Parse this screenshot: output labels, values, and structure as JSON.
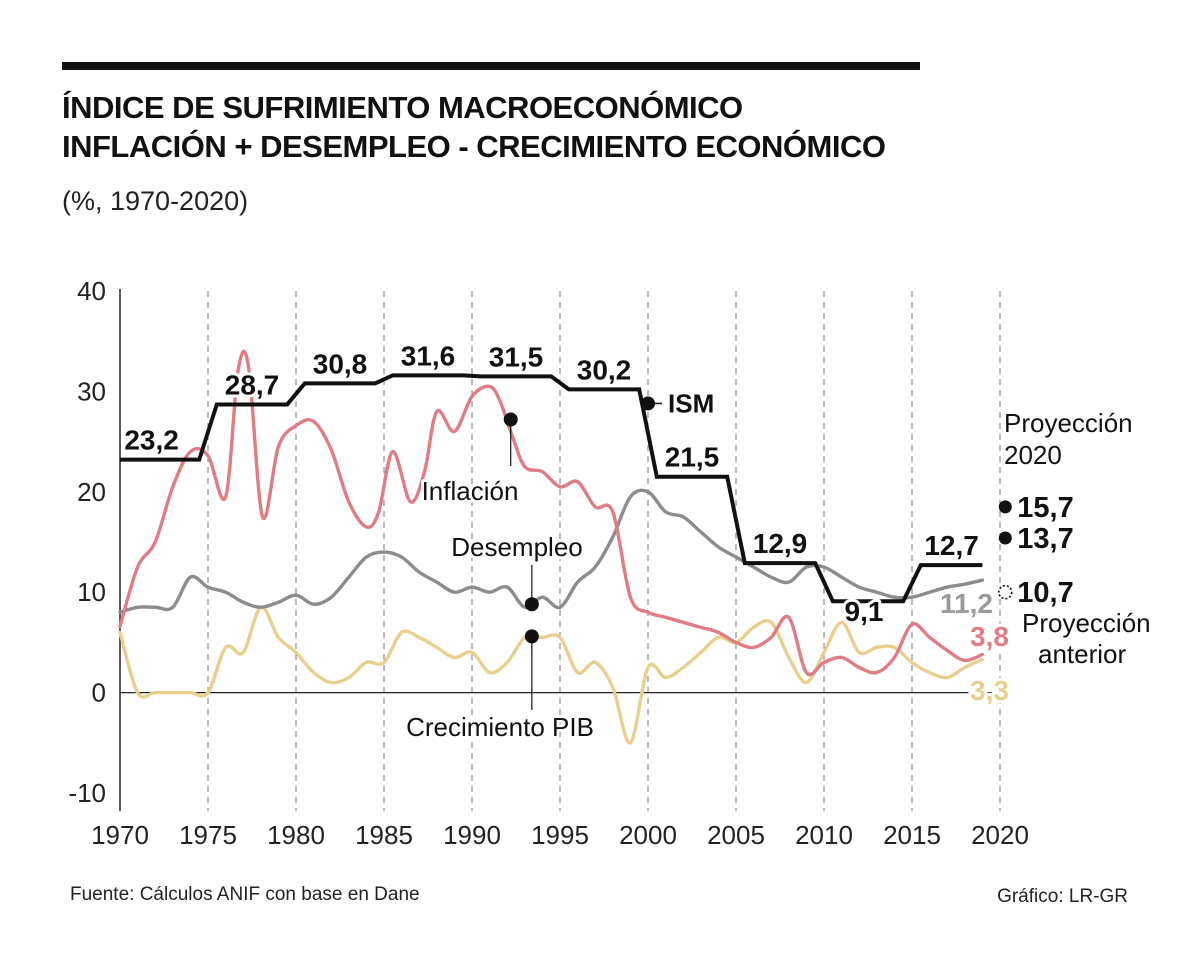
{
  "header": {
    "title_line1": "ÍNDICE DE SUFRIMIENTO MACROECONÓMICO",
    "title_line2": "INFLACIÓN + DESEMPLEO - CRECIMIENTO ECONÓMICO",
    "subtitle": "(%, 1970-2020)"
  },
  "footer": {
    "source": "Fuente: Cálculos ANIF con base en Dane",
    "credit": "Gráfico: LR-GR"
  },
  "colors": {
    "ism": "#111111",
    "inflacion": "#E07C84",
    "desempleo": "#8C8C8C",
    "crecimiento": "#E8CF8E",
    "label_ism_last": "#111111",
    "label_desempleo": "#9A9A9A",
    "label_inflacion": "#E07C84",
    "label_crecimiento": "#E8CF8E"
  },
  "chart_data": {
    "type": "line",
    "title": "ÍNDICE DE SUFRIMIENTO MACROECONÓMICO",
    "xlabel": "",
    "ylabel": "%",
    "xlim": [
      1970,
      2020
    ],
    "ylim": [
      -10,
      40
    ],
    "xticks": [
      "1970",
      "1975",
      "1980",
      "1985",
      "1990",
      "1995",
      "2000",
      "2005",
      "2010",
      "2015",
      "2020"
    ],
    "yticks": [
      "-10",
      "0",
      "10",
      "20",
      "30",
      "40"
    ],
    "grid": "vertical dashed",
    "series": [
      {
        "key": "ism",
        "name": "ISM",
        "style": "step",
        "segments": [
          {
            "start": 1970,
            "end": 1974.5,
            "value": 23.2,
            "label": "23,2"
          },
          {
            "start": 1975.5,
            "end": 1979.5,
            "value": 28.7,
            "label": "28,7"
          },
          {
            "start": 1980.5,
            "end": 1984.5,
            "value": 30.8,
            "label": "30,8"
          },
          {
            "start": 1985.5,
            "end": 1989.5,
            "value": 31.6,
            "label": "31,6"
          },
          {
            "start": 1990.5,
            "end": 1994.5,
            "value": 31.5,
            "label": "31,5"
          },
          {
            "start": 1995.5,
            "end": 1999.5,
            "value": 30.2,
            "label": "30,2"
          },
          {
            "start": 2000.5,
            "end": 2004.5,
            "value": 21.5,
            "label": "21,5"
          },
          {
            "start": 2005.5,
            "end": 2009.5,
            "value": 12.9,
            "label": "12,9"
          },
          {
            "start": 2010.5,
            "end": 2014.5,
            "value": 9.1,
            "label": "9,1"
          },
          {
            "start": 2015.5,
            "end": 2019,
            "value": 12.7,
            "label": "12,7"
          }
        ]
      },
      {
        "key": "inflacion",
        "name": "Inflación",
        "x": [
          1970,
          1971,
          1972,
          1973,
          1974,
          1975,
          1976,
          1976.7,
          1977.3,
          1978.1,
          1979,
          1980,
          1981,
          1982,
          1983,
          1984,
          1984.7,
          1985.5,
          1986.5,
          1987.3,
          1988,
          1989,
          1990,
          1991,
          1991.6,
          1992.3,
          1993,
          1994,
          1995,
          1996,
          1997,
          1998,
          1999,
          2000,
          2001,
          2002,
          2003,
          2004,
          2005,
          2006,
          2007,
          2008,
          2009,
          2010,
          2011,
          2012,
          2013,
          2014,
          2015,
          2016,
          2017,
          2018,
          2019
        ],
        "values": [
          6.6,
          12.5,
          15.0,
          20.5,
          24.0,
          23.6,
          19.5,
          32.0,
          32.5,
          17.5,
          24.5,
          26.6,
          27.0,
          24.2,
          19.0,
          16.5,
          18.0,
          24.0,
          19.0,
          22.0,
          28.0,
          26.0,
          29.5,
          30.5,
          29.0,
          25.5,
          22.5,
          22.0,
          20.5,
          21.0,
          18.5,
          18.0,
          9.5,
          8.0,
          7.5,
          7.0,
          6.5,
          6.0,
          5.0,
          4.5,
          5.5,
          7.5,
          2.0,
          3.0,
          3.5,
          2.5,
          2.0,
          3.5,
          6.8,
          5.5,
          4.2,
          3.2,
          3.8
        ],
        "end_label": "3,8"
      },
      {
        "key": "desempleo",
        "name": "Desempleo",
        "x": [
          1970,
          1971,
          1972,
          1973,
          1974,
          1975,
          1976,
          1977,
          1978,
          1979,
          1980,
          1981,
          1982,
          1983,
          1984,
          1985,
          1986,
          1987,
          1988,
          1989,
          1990,
          1991,
          1992,
          1993,
          1994,
          1995,
          1996,
          1997,
          1998,
          1999,
          2000,
          2001,
          2002,
          2003,
          2004,
          2005,
          2006,
          2007,
          2008,
          2009,
          2010,
          2011,
          2012,
          2013,
          2014,
          2015,
          2016,
          2017,
          2018,
          2019
        ],
        "values": [
          8.0,
          8.5,
          8.5,
          8.5,
          11.5,
          10.5,
          10.0,
          9.0,
          8.5,
          9.0,
          9.7,
          8.8,
          9.5,
          11.5,
          13.5,
          14.0,
          13.5,
          12.0,
          11.0,
          10.0,
          10.5,
          10.0,
          10.5,
          8.5,
          9.5,
          8.5,
          11.0,
          12.5,
          15.5,
          19.5,
          20.0,
          18.0,
          17.5,
          16.0,
          14.5,
          13.5,
          12.5,
          11.5,
          11.0,
          12.5,
          12.5,
          11.5,
          10.5,
          10.0,
          9.5,
          9.5,
          10.0,
          10.5,
          10.8,
          11.2
        ],
        "end_label": "11,2"
      },
      {
        "key": "crecimiento",
        "name": "Crecimiento PIB",
        "x": [
          1970,
          1971,
          1972,
          1973,
          1974,
          1975,
          1976,
          1977,
          1978,
          1979,
          1980,
          1981,
          1982,
          1983,
          1984,
          1985,
          1986,
          1987,
          1988,
          1989,
          1990,
          1991,
          1992,
          1993,
          1994,
          1995,
          1996,
          1997,
          1998,
          1999,
          2000,
          2001,
          2002,
          2003,
          2004,
          2005,
          2006,
          2007,
          2008,
          2009,
          2010,
          2011,
          2012,
          2013,
          2014,
          2015,
          2016,
          2017,
          2018,
          2019
        ],
        "values": [
          6.0,
          0.0,
          0.0,
          0.0,
          0.0,
          0.0,
          4.5,
          4.0,
          8.5,
          5.5,
          4.0,
          2.0,
          1.0,
          1.5,
          3.0,
          3.0,
          6.0,
          5.5,
          4.5,
          3.5,
          4.0,
          2.0,
          3.0,
          5.5,
          5.5,
          5.5,
          2.0,
          3.0,
          0.5,
          -5.0,
          2.5,
          1.5,
          2.5,
          4.0,
          5.5,
          5.0,
          6.5,
          7.0,
          3.5,
          1.0,
          4.0,
          7.0,
          4.0,
          4.5,
          4.5,
          3.0,
          2.0,
          1.5,
          2.5,
          3.3
        ],
        "end_label": "3,3"
      }
    ],
    "series_labels": {
      "ism": "ISM",
      "inflacion": "Inflación",
      "desempleo": "Desempleo",
      "crecimiento": "Crecimiento PIB"
    },
    "markers": [
      {
        "key": "ism",
        "x": 2000,
        "y": 28.8
      },
      {
        "key": "inflacion",
        "x": 1992.2,
        "y": 27.2
      },
      {
        "key": "desempleo",
        "x": 1993.4,
        "y": 8.8
      },
      {
        "key": "crecimiento",
        "x": 1993.4,
        "y": 5.6
      }
    ],
    "projection": {
      "title_line1": "Proyección",
      "title_line2": "2020",
      "points": [
        {
          "x": 2020.3,
          "y": 18.5,
          "value": 15.7,
          "label": "15,7",
          "filled": true
        },
        {
          "x": 2020.3,
          "y": 15.4,
          "value": 13.7,
          "label": "13,7",
          "filled": true
        },
        {
          "x": 2020.3,
          "y": 10.0,
          "value": 10.7,
          "label": "10,7",
          "filled": false
        }
      ],
      "previous_line1": "Proyección",
      "previous_line2": "anterior"
    }
  }
}
